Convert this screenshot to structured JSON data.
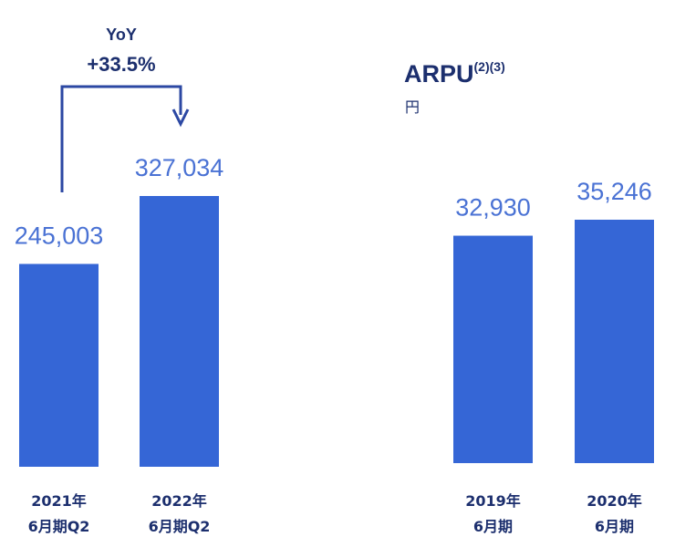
{
  "colors": {
    "bar": "#3566d6",
    "value_label": "#4a72d4",
    "text_dark": "#1c2f6e",
    "arrow": "#2c48a3"
  },
  "yoy": {
    "title": "YoY",
    "value": "+33.5%"
  },
  "arpu": {
    "title": "ARPU",
    "notes": "(2)(3)",
    "unit": "円"
  },
  "chart_data": [
    {
      "type": "bar",
      "categories": [
        [
          "2021年",
          "6月期Q2"
        ],
        [
          "2022年",
          "6月期Q2"
        ]
      ],
      "values": [
        245003,
        327034
      ],
      "value_labels": [
        "245,003",
        "327,034"
      ],
      "title": "",
      "xlabel": "",
      "ylabel": "",
      "ylim": [
        0,
        327034
      ]
    },
    {
      "type": "bar",
      "categories": [
        [
          "2019年",
          "6月期"
        ],
        [
          "2020年",
          "6月期"
        ]
      ],
      "values": [
        32930,
        35246
      ],
      "value_labels": [
        "32,930",
        "35,246"
      ],
      "title": "ARPU(2)(3)",
      "xlabel": "",
      "ylabel": "円",
      "ylim": [
        0,
        35246
      ]
    }
  ]
}
